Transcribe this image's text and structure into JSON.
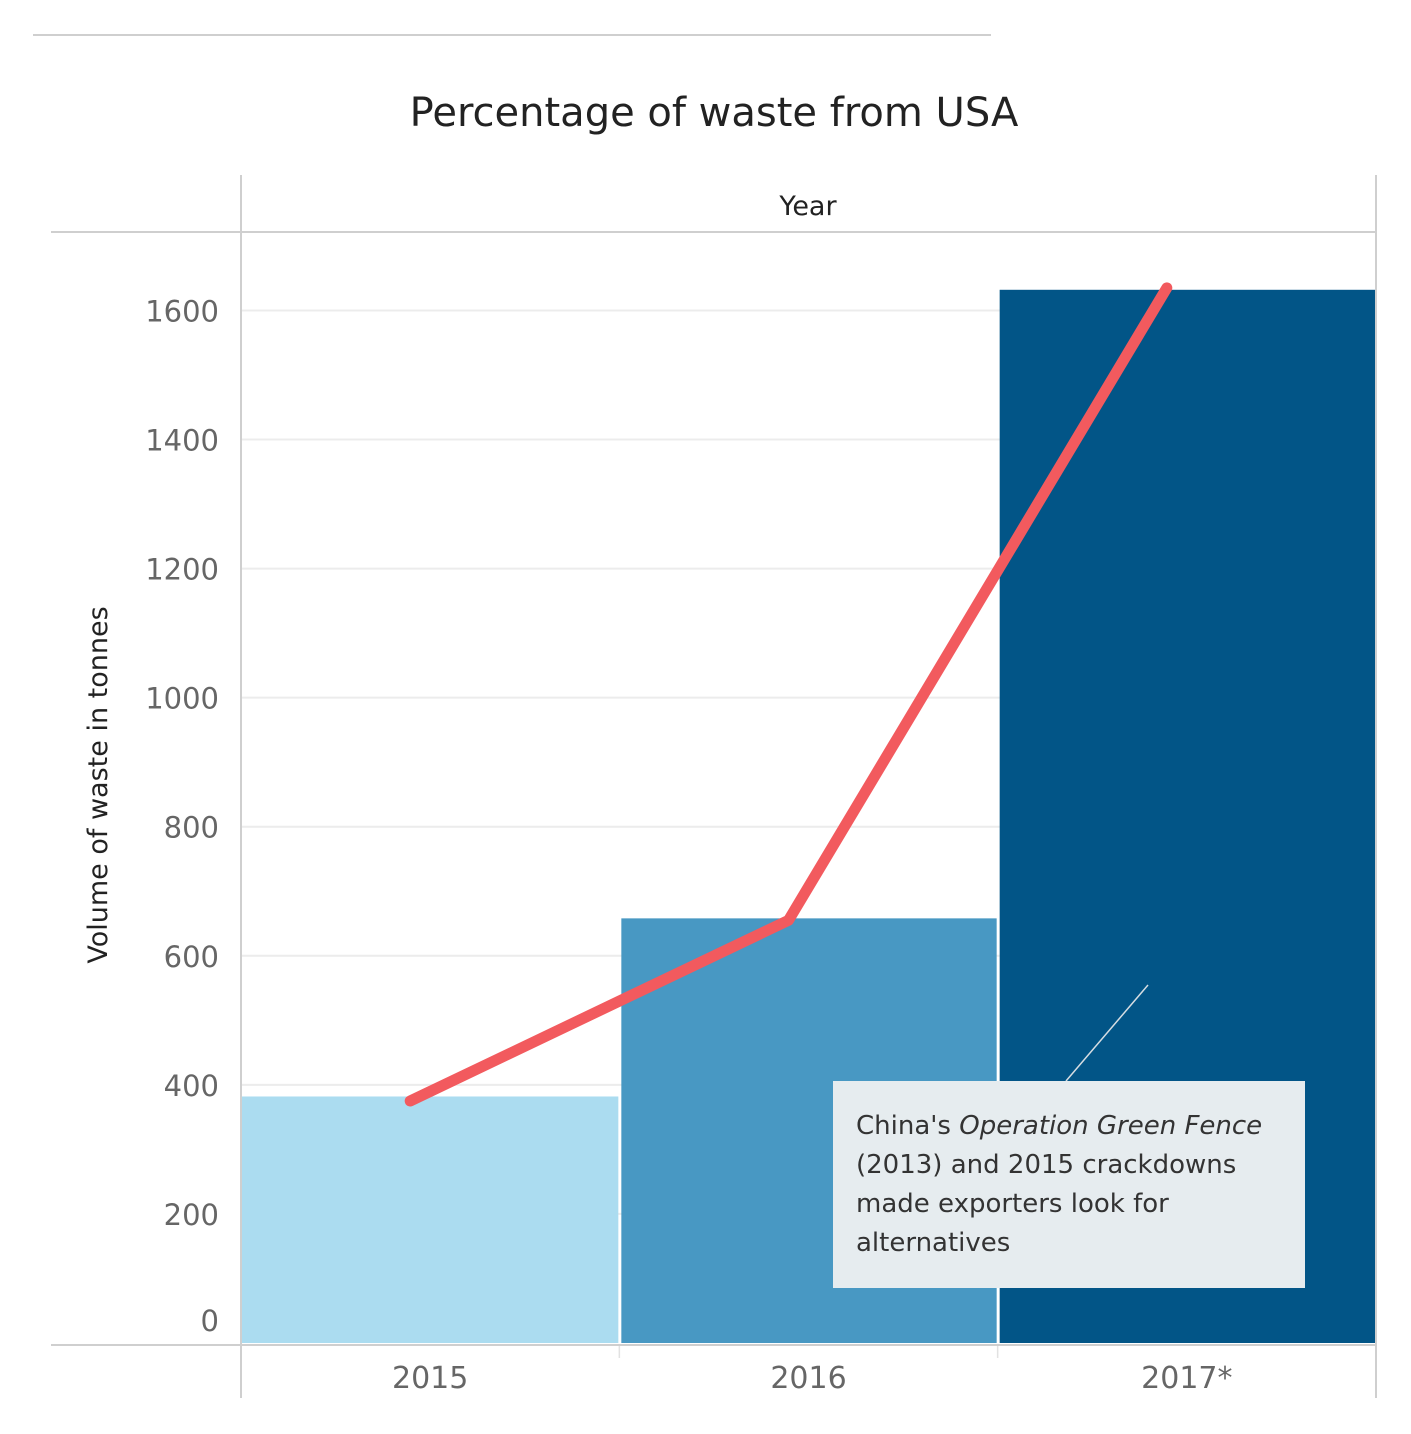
{
  "chart_data": {
    "type": "bar",
    "title": "Percentage of waste from USA",
    "header": "Year",
    "ylabel": "Volume of waste in tonnes",
    "xlabel": "",
    "categories": [
      "2015",
      "2016",
      "2017*"
    ],
    "values": [
      382,
      658,
      1632
    ],
    "line_values": [
      375,
      655,
      1635
    ],
    "ylim": [
      0,
      1720
    ],
    "yticks": [
      0,
      200,
      400,
      600,
      800,
      1000,
      1200,
      1400,
      1600
    ],
    "ytick_labels": [
      "0",
      "200",
      "400",
      "600",
      "800",
      "1000",
      "1200",
      "1400",
      "1600"
    ],
    "grid": true,
    "bar_colors": [
      "#abdcf0",
      "#4898c3",
      "#025587"
    ],
    "line_color": "#f25a5e",
    "annotation": {
      "before": "China's ",
      "italic": "Operation Green Fence",
      "after": " (2013) and 2015 crackdowns made exporters look for alternatives"
    }
  }
}
